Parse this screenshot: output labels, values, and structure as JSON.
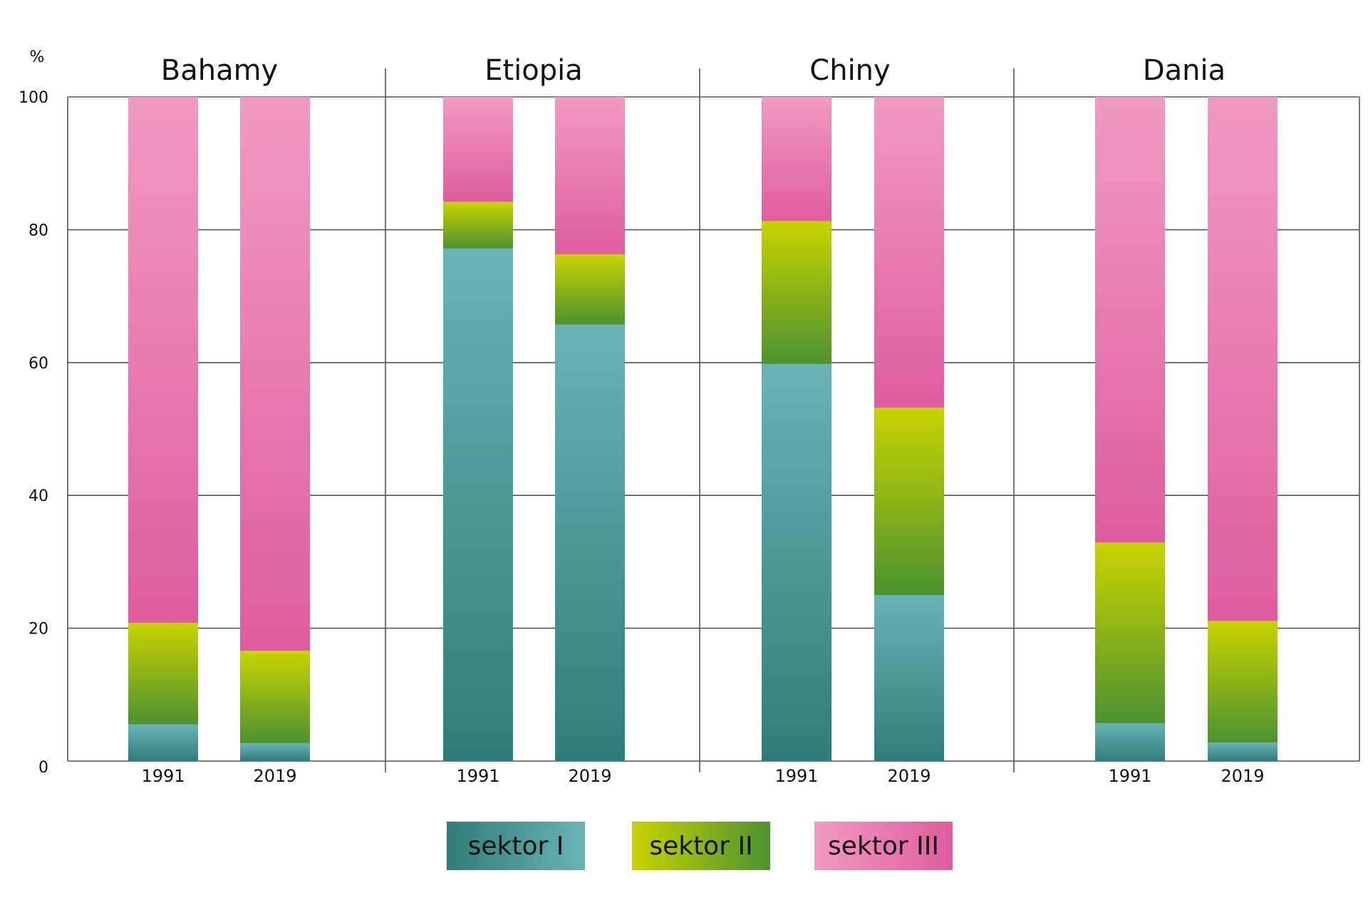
{
  "chart_data": {
    "type": "bar",
    "stacked": true,
    "unit_label": "%",
    "ylim": [
      0,
      100
    ],
    "yticks": [
      0,
      20,
      40,
      60,
      80,
      100
    ],
    "groups": [
      "Bahamy",
      "Etiopia",
      "Chiny",
      "Dania"
    ],
    "years": [
      "1991",
      "2019"
    ],
    "series": [
      {
        "name": "sektor I",
        "values": [
          [
            5.5,
            2.7
          ],
          [
            77.2,
            65.7
          ],
          [
            59.8,
            25.0
          ],
          [
            5.7,
            2.8
          ]
        ]
      },
      {
        "name": "sektor II",
        "values": [
          [
            15.3,
            13.9
          ],
          [
            7.0,
            10.6
          ],
          [
            21.5,
            28.2
          ],
          [
            27.2,
            18.3
          ]
        ]
      },
      {
        "name": "sektor III",
        "values": [
          [
            79.2,
            83.4
          ],
          [
            15.8,
            23.7
          ],
          [
            18.7,
            46.8
          ],
          [
            67.1,
            78.9
          ]
        ]
      }
    ],
    "legend_position": "bottom-center",
    "grid": true
  },
  "colors": {
    "s1_top": "#69b3b6",
    "s1_bottom": "#2f7d7b",
    "s2_top": "#c8d400",
    "s2_bottom": "#4c9230",
    "s3_top": "#f19ac2",
    "s3_bottom": "#df5c9f",
    "grid": "#555555"
  }
}
